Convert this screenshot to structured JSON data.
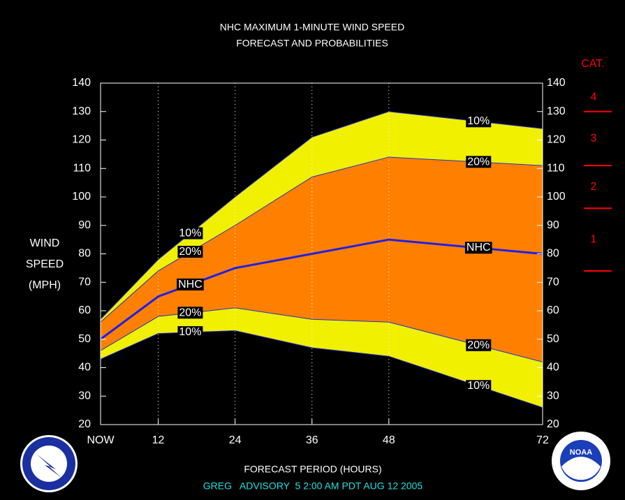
{
  "chart_data": {
    "type": "band-line",
    "title": "NHC MAXIMUM 1-MINUTE WIND SPEED",
    "subtitle": "FORECAST AND PROBABILITIES",
    "y_label": [
      "WIND",
      "SPEED",
      "(MPH)"
    ],
    "x_label": "FORECAST PERIOD (HOURS)",
    "footer": "GREG   ADVISORY  5 2:00 AM PDT AUG 12 2005",
    "x": [
      3,
      12,
      24,
      36,
      48,
      72
    ],
    "xlim": [
      3,
      72
    ],
    "xticks": [
      {
        "value": 3,
        "label": "NOW"
      },
      12,
      24,
      36,
      48,
      72
    ],
    "ylim": [
      20,
      140
    ],
    "yticks": [
      20,
      30,
      40,
      50,
      60,
      70,
      80,
      90,
      100,
      110,
      120,
      130,
      140
    ],
    "y2lim": [
      20,
      140
    ],
    "y2ticks": [
      20,
      30,
      40,
      50,
      60,
      70,
      80,
      90,
      100,
      110,
      120,
      130,
      140
    ],
    "grid": true,
    "series": [
      {
        "name": "10%",
        "color": "#2030d0",
        "fill": "#f0f000",
        "values": [
          57,
          78,
          100,
          121,
          130,
          124
        ]
      },
      {
        "name": "20%",
        "color": "#2030d0",
        "fill": "#ff8000",
        "values": [
          56,
          74,
          90,
          107,
          114,
          111
        ]
      },
      {
        "name": "NHC",
        "color": "#2020e8",
        "values": [
          50,
          65,
          75,
          80,
          85,
          80
        ]
      },
      {
        "name": "20%",
        "color": "#2030d0",
        "values": [
          46,
          58,
          61,
          57,
          56,
          42
        ]
      },
      {
        "name": "10%",
        "color": "#2030d0",
        "values": [
          43,
          52,
          53,
          47,
          44,
          26
        ]
      }
    ],
    "category_scale": {
      "title": "CAT.",
      "color": "#ff0000",
      "labels": [
        "1",
        "2",
        "3",
        "4"
      ],
      "thresholds": [
        74,
        96,
        111,
        130
      ]
    },
    "logo_text": "NOAA"
  }
}
